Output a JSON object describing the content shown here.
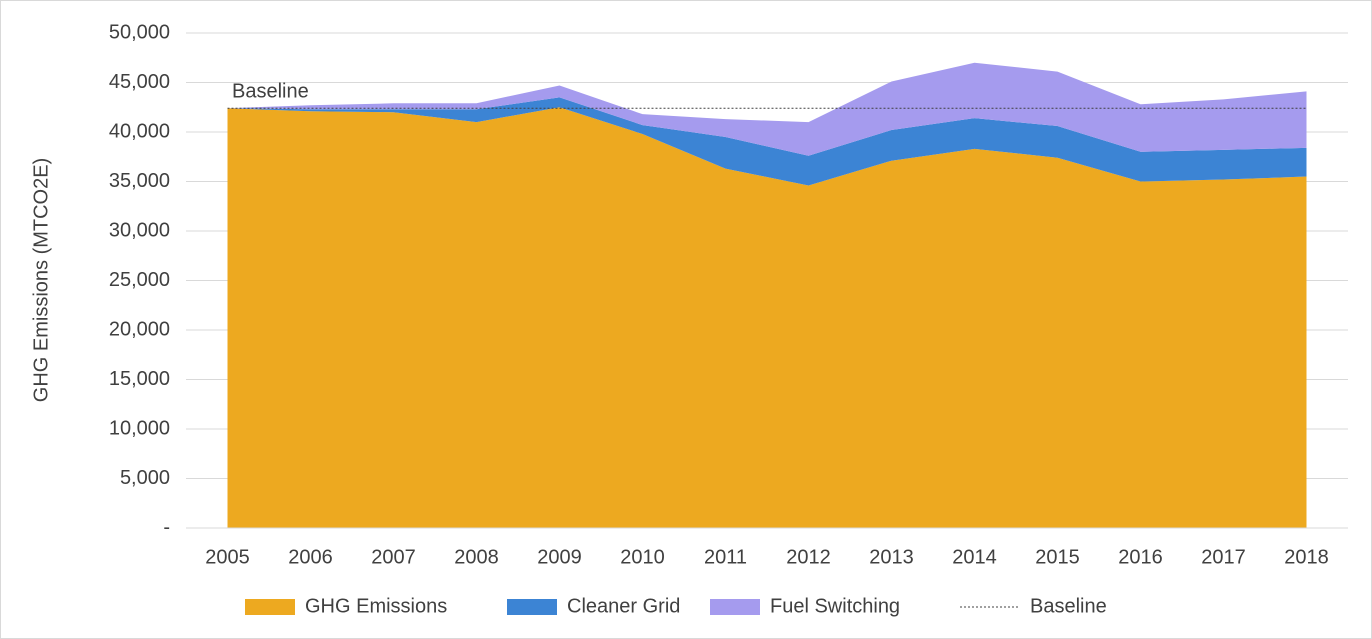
{
  "chart_data": {
    "type": "stacked-area",
    "y_label": "GHG Emissions (MTCO2E)",
    "categories": [
      "2005",
      "2006",
      "2007",
      "2008",
      "2009",
      "2010",
      "2011",
      "2012",
      "2013",
      "2014",
      "2015",
      "2016",
      "2017",
      "2018"
    ],
    "series": [
      {
        "name": "GHG Emissions",
        "color": "#eda920",
        "values": [
          42400,
          42100,
          42000,
          41000,
          42500,
          39800,
          36300,
          34600,
          37100,
          38300,
          37400,
          35000,
          35200,
          35500
        ]
      },
      {
        "name": "Cleaner Grid",
        "color": "#3c84d4",
        "values": [
          0,
          200,
          300,
          1300,
          1000,
          900,
          3200,
          3000,
          3100,
          3100,
          3200,
          3000,
          3000,
          2900
        ]
      },
      {
        "name": "Fuel Switching",
        "color": "#a59bee",
        "values": [
          0,
          400,
          600,
          600,
          1200,
          1100,
          1800,
          3400,
          4900,
          5600,
          5500,
          4800,
          5100,
          5700
        ]
      }
    ],
    "baseline": {
      "name": "Baseline",
      "value": 42400,
      "color": "#404040"
    },
    "ylim": [
      0,
      50000
    ],
    "yticks": [
      {
        "value": 0,
        "label": "-"
      },
      {
        "value": 5000,
        "label": "5,000"
      },
      {
        "value": 10000,
        "label": "10,000"
      },
      {
        "value": 15000,
        "label": "15,000"
      },
      {
        "value": 20000,
        "label": "20,000"
      },
      {
        "value": 25000,
        "label": "25,000"
      },
      {
        "value": 30000,
        "label": "30,000"
      },
      {
        "value": 35000,
        "label": "35,000"
      },
      {
        "value": 40000,
        "label": "40,000"
      },
      {
        "value": 45000,
        "label": "45,000"
      },
      {
        "value": 50000,
        "label": "50,000"
      }
    ],
    "grid": true,
    "legend": "bottom"
  }
}
